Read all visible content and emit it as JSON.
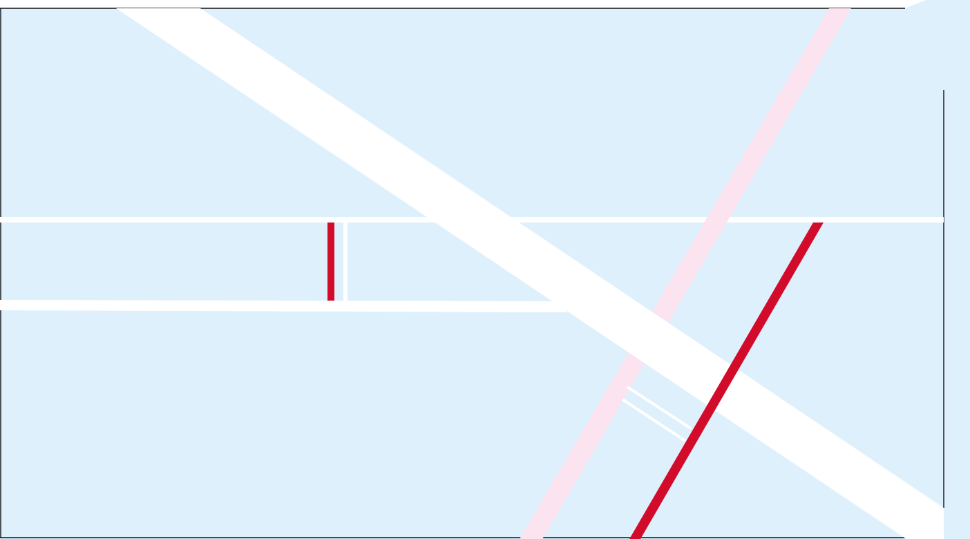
{
  "map": {
    "colors": {
      "background": "#dff0fd",
      "road_white": "#ffffff",
      "road_red": "#d20b2a",
      "road_pink": "#fbe3ef",
      "border": "#111111"
    },
    "layers": [
      "water-area",
      "tile-border",
      "major-road-diagonal",
      "horizontal-road-upper",
      "horizontal-road-lower",
      "pink-road",
      "red-road-short",
      "red-road-diagonal",
      "service-road-pair"
    ]
  }
}
